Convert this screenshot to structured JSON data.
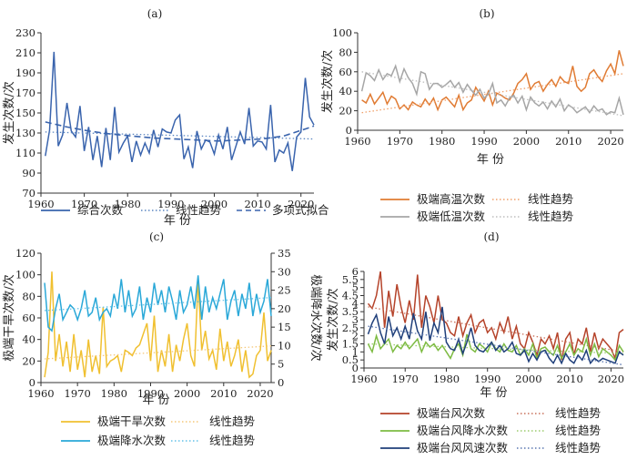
{
  "chart_data": [
    {
      "panel": "(a)",
      "type": "line",
      "xlabel": "年 份",
      "ylabel": "发生次数/次",
      "xlim": [
        1960,
        2023
      ],
      "ylim": [
        70,
        230
      ],
      "xticks": [
        1960,
        1970,
        1980,
        1990,
        2000,
        2010,
        2020
      ],
      "yticks": [
        70,
        90,
        110,
        130,
        150,
        170,
        190,
        210,
        230
      ],
      "grid": false,
      "legend_position": "bottom",
      "x": [
        1961,
        1962,
        1963,
        1964,
        1965,
        1966,
        1967,
        1968,
        1969,
        1970,
        1971,
        1972,
        1973,
        1974,
        1975,
        1976,
        1977,
        1978,
        1979,
        1980,
        1981,
        1982,
        1983,
        1984,
        1985,
        1986,
        1987,
        1988,
        1989,
        1990,
        1991,
        1992,
        1993,
        1994,
        1995,
        1996,
        1997,
        1998,
        1999,
        2000,
        2001,
        2002,
        2003,
        2004,
        2005,
        2006,
        2007,
        2008,
        2009,
        2010,
        2011,
        2012,
        2013,
        2014,
        2015,
        2016,
        2017,
        2018,
        2019,
        2020,
        2021,
        2022,
        2023
      ],
      "series": [
        {
          "name": "综合次数",
          "kind": "line",
          "color": "#3a64ad",
          "values": [
            107,
            133,
            211,
            117,
            128,
            160,
            132,
            126,
            157,
            112,
            136,
            103,
            127,
            96,
            135,
            103,
            156,
            111,
            120,
            127,
            101,
            122,
            108,
            120,
            110,
            133,
            116,
            134,
            131,
            130,
            143,
            148,
            104,
            116,
            95,
            132,
            114,
            123,
            121,
            109,
            128,
            114,
            136,
            103,
            117,
            131,
            119,
            155,
            117,
            122,
            121,
            114,
            158,
            101,
            113,
            110,
            120,
            92,
            126,
            131,
            185,
            146,
            138
          ]
        },
        {
          "name": "线性趋势",
          "kind": "trend",
          "color": "#5b86c2",
          "start": 131,
          "end": 124
        },
        {
          "name": "多项式拟合",
          "kind": "poly",
          "color": "#3a64ad",
          "x": [
            1961,
            1966,
            1971,
            1976,
            1981,
            1986,
            1991,
            1996,
            2001,
            2006,
            2011,
            2016,
            2021,
            2023
          ],
          "values": [
            141,
            136,
            132,
            129,
            127,
            125,
            124,
            123,
            122,
            123,
            124,
            127,
            134,
            137
          ]
        }
      ]
    },
    {
      "panel": "(b)",
      "type": "line",
      "xlabel": "年 份",
      "ylabel": "发生次数/次",
      "xlim": [
        1960,
        2023
      ],
      "ylim": [
        0,
        100
      ],
      "xticks": [
        1960,
        1970,
        1980,
        1990,
        2000,
        2010,
        2020
      ],
      "yticks": [
        0,
        20,
        40,
        60,
        80,
        100
      ],
      "grid": false,
      "legend_position": "bottom",
      "x": [
        1961,
        1962,
        1963,
        1964,
        1965,
        1966,
        1967,
        1968,
        1969,
        1970,
        1971,
        1972,
        1973,
        1974,
        1975,
        1976,
        1977,
        1978,
        1979,
        1980,
        1981,
        1982,
        1983,
        1984,
        1985,
        1986,
        1987,
        1988,
        1989,
        1990,
        1991,
        1992,
        1993,
        1994,
        1995,
        1996,
        1997,
        1998,
        1999,
        2000,
        2001,
        2002,
        2003,
        2004,
        2005,
        2006,
        2007,
        2008,
        2009,
        2010,
        2011,
        2012,
        2013,
        2014,
        2015,
        2016,
        2017,
        2018,
        2019,
        2020,
        2021,
        2022,
        2023
      ],
      "series": [
        {
          "name": "极端高温次数",
          "kind": "line",
          "color": "#e07b33",
          "values": [
            31,
            28,
            37,
            27,
            33,
            39,
            27,
            35,
            32,
            22,
            26,
            21,
            29,
            26,
            24,
            32,
            26,
            33,
            21,
            31,
            34,
            29,
            24,
            36,
            21,
            28,
            31,
            44,
            37,
            30,
            40,
            26,
            38,
            36,
            33,
            31,
            38,
            48,
            52,
            58,
            42,
            48,
            50,
            40,
            47,
            52,
            45,
            55,
            50,
            48,
            66,
            45,
            40,
            44,
            58,
            62,
            55,
            50,
            61,
            68,
            58,
            82,
            66
          ]
        },
        {
          "name": "线性趋势",
          "kind": "trend",
          "color": "#f0a06a",
          "start": 18,
          "end": 58
        },
        {
          "name": "极端低温次数",
          "kind": "line",
          "color": "#a6a6a6",
          "values": [
            40,
            59,
            56,
            51,
            62,
            52,
            58,
            56,
            66,
            50,
            63,
            54,
            48,
            37,
            60,
            58,
            42,
            48,
            48,
            44,
            47,
            51,
            44,
            49,
            39,
            47,
            41,
            36,
            42,
            33,
            37,
            48,
            28,
            31,
            25,
            33,
            36,
            28,
            35,
            21,
            34,
            28,
            25,
            29,
            22,
            30,
            24,
            32,
            20,
            26,
            23,
            18,
            21,
            24,
            18,
            25,
            20,
            22,
            16,
            19,
            18,
            33,
            16
          ]
        },
        {
          "name": "线性趋势",
          "kind": "trend",
          "color": "#bdbdbd",
          "start": 60,
          "end": 15
        }
      ]
    },
    {
      "panel": "(c)",
      "type": "line",
      "xlabel": "年 份",
      "ylabel": "极端干旱次数/次",
      "ylabel_right": "极端降水次数/次",
      "xlim": [
        1960,
        2023
      ],
      "ylim": [
        0,
        120
      ],
      "ylim_right": [
        0,
        35
      ],
      "xticks": [
        1960,
        1970,
        1980,
        1990,
        2000,
        2010,
        2020
      ],
      "yticks": [
        0,
        20,
        40,
        60,
        80,
        100,
        120
      ],
      "yticks_right": [
        0,
        5,
        10,
        15,
        20,
        25,
        30,
        35
      ],
      "grid": false,
      "legend_position": "bottom",
      "x": [
        1961,
        1962,
        1963,
        1964,
        1965,
        1966,
        1967,
        1968,
        1969,
        1970,
        1971,
        1972,
        1973,
        1974,
        1975,
        1976,
        1977,
        1978,
        1979,
        1980,
        1981,
        1982,
        1983,
        1984,
        1985,
        1986,
        1987,
        1988,
        1989,
        1990,
        1991,
        1992,
        1993,
        1994,
        1995,
        1996,
        1997,
        1998,
        1999,
        2000,
        2001,
        2002,
        2003,
        2004,
        2005,
        2006,
        2007,
        2008,
        2009,
        2010,
        2011,
        2012,
        2013,
        2014,
        2015,
        2016,
        2017,
        2018,
        2019,
        2020,
        2021,
        2022,
        2023
      ],
      "series": [
        {
          "name": "极端干旱次数",
          "kind": "line",
          "axis": "left",
          "color": "#f0c030",
          "values": [
            5,
            28,
            103,
            20,
            45,
            15,
            38,
            10,
            45,
            12,
            30,
            5,
            40,
            10,
            25,
            8,
            70,
            15,
            20,
            22,
            25,
            10,
            30,
            28,
            25,
            32,
            35,
            45,
            55,
            20,
            62,
            10,
            30,
            15,
            45,
            10,
            35,
            20,
            40,
            55,
            25,
            15,
            95,
            30,
            48,
            22,
            30,
            12,
            50,
            20,
            38,
            15,
            25,
            40,
            10,
            30,
            5,
            8,
            25,
            30,
            65,
            20,
            30
          ]
        },
        {
          "name": "线性趋势",
          "kind": "trend",
          "axis": "left",
          "color": "#f5c878",
          "start": 22,
          "end": 34
        },
        {
          "name": "极端降水次数",
          "kind": "line",
          "axis": "right",
          "color": "#2aa8d8",
          "values": [
            27,
            15,
            14,
            20,
            24,
            17,
            19,
            21,
            20,
            17,
            20,
            25,
            18,
            19,
            23,
            17,
            19,
            20,
            18,
            24,
            20,
            28,
            19,
            25,
            18,
            20,
            26,
            17,
            23,
            19,
            27,
            21,
            25,
            19,
            26,
            22,
            17,
            25,
            19,
            21,
            26,
            20,
            29,
            17,
            26,
            19,
            23,
            20,
            24,
            28,
            17,
            22,
            25,
            18,
            24,
            20,
            27,
            18,
            24,
            19,
            22,
            28,
            18
          ]
        },
        {
          "name": "线性趋势",
          "kind": "trend",
          "axis": "right",
          "color": "#63c2e8",
          "start": 19.5,
          "end": 23
        }
      ]
    },
    {
      "panel": "(d)",
      "type": "line",
      "xlabel": "年 份",
      "ylabel": "发生次数/次",
      "xlim": [
        1960,
        2023
      ],
      "ylim": [
        0,
        6
      ],
      "xticks": [
        1960,
        1970,
        1980,
        1990,
        2000,
        2010,
        2020
      ],
      "yticks": [
        0,
        0.5,
        1,
        1.5,
        2,
        2.5,
        3,
        3.5,
        4,
        4.5,
        5,
        5.5,
        6
      ],
      "grid": false,
      "legend_position": "bottom",
      "x": [
        1961,
        1962,
        1963,
        1964,
        1965,
        1966,
        1967,
        1968,
        1969,
        1970,
        1971,
        1972,
        1973,
        1974,
        1975,
        1976,
        1977,
        1978,
        1979,
        1980,
        1981,
        1982,
        1983,
        1984,
        1985,
        1986,
        1987,
        1988,
        1989,
        1990,
        1991,
        1992,
        1993,
        1994,
        1995,
        1996,
        1997,
        1998,
        1999,
        2000,
        2001,
        2002,
        2003,
        2004,
        2005,
        2006,
        2007,
        2008,
        2009,
        2010,
        2011,
        2012,
        2013,
        2014,
        2015,
        2016,
        2017,
        2018,
        2019,
        2020,
        2021,
        2022,
        2023
      ],
      "series": [
        {
          "name": "极端台风次数",
          "kind": "line",
          "color": "#b5432a",
          "values": [
            4,
            3.7,
            4.5,
            6,
            2.5,
            4.8,
            3.2,
            5.2,
            3.8,
            2.8,
            4.2,
            3,
            5.8,
            2.5,
            4.5,
            3.8,
            2.8,
            4.5,
            3,
            2.8,
            2.2,
            2,
            3.2,
            2,
            2.8,
            3.3,
            2.2,
            2.8,
            3,
            2.2,
            2.5,
            1.8,
            2.8,
            2.2,
            3.2,
            1.8,
            2.6,
            1.5,
            1.2,
            2.2,
            1.6,
            0.8,
            1.8,
            1.5,
            2,
            1.2,
            2.2,
            0.5,
            1.8,
            2.2,
            0.8,
            1.8,
            1.5,
            2.5,
            1,
            2.2,
            1.2,
            1.8,
            1.5,
            1.2,
            0.6,
            2.2,
            2.4
          ]
        },
        {
          "name": "线性趋势",
          "kind": "trend",
          "color": "#c8705a",
          "start": 3.8,
          "end": 1.0
        },
        {
          "name": "极端台风降水次数",
          "kind": "line",
          "color": "#7dbb42",
          "values": [
            1.5,
            1,
            2,
            1.2,
            1.5,
            1.8,
            1,
            1.4,
            1.2,
            1.6,
            1.2,
            1.5,
            1.8,
            1,
            1.6,
            1.3,
            1.5,
            1.1,
            1.4,
            1,
            0.6,
            1.2,
            1.5,
            0.8,
            2.1,
            1.2,
            1,
            1.5,
            1.3,
            1,
            1.6,
            1.2,
            1,
            1.5,
            1.1,
            1,
            1.4,
            0.8,
            1.2,
            0.8,
            1.5,
            0.6,
            1.2,
            1.3,
            1,
            0.8,
            1.4,
            0.6,
            1,
            1.5,
            0.8,
            1.2,
            1,
            1.8,
            0.8,
            1.5,
            0.7,
            1.2,
            1,
            0.8,
            0.5,
            1.4,
            1
          ]
        },
        {
          "name": "线性趋势",
          "kind": "trend",
          "color": "#9bcb6e",
          "start": 1.5,
          "end": 0.9
        },
        {
          "name": "极端台风风速次数",
          "kind": "line",
          "color": "#1f3f7a",
          "values": [
            2.1,
            2.8,
            3.3,
            2.2,
            1.5,
            3.2,
            2,
            2.5,
            1.8,
            2.6,
            1.8,
            3.4,
            2.3,
            1.8,
            3.5,
            1.7,
            2.8,
            2.2,
            3.8,
            1.6,
            1.2,
            1.1,
            1.8,
            0.9,
            1.6,
            2.5,
            1.4,
            1.1,
            1,
            1.3,
            1.6,
            1.1,
            1.4,
            1,
            1.2,
            1.6,
            0.9,
            0.8,
            1.1,
            0.4,
            0.9,
            0.5,
            1,
            1.1,
            0.6,
            0.3,
            0.8,
            0.3,
            0.9,
            0.5,
            0.3,
            0.8,
            0.5,
            1.1,
            0.3,
            0.6,
            0.4,
            0.6,
            0.5,
            0.4,
            0.3,
            1,
            0.8
          ]
        },
        {
          "name": "线性趋势",
          "kind": "trend",
          "color": "#5a76b0",
          "start": 2.6,
          "end": 0.2
        }
      ]
    }
  ]
}
